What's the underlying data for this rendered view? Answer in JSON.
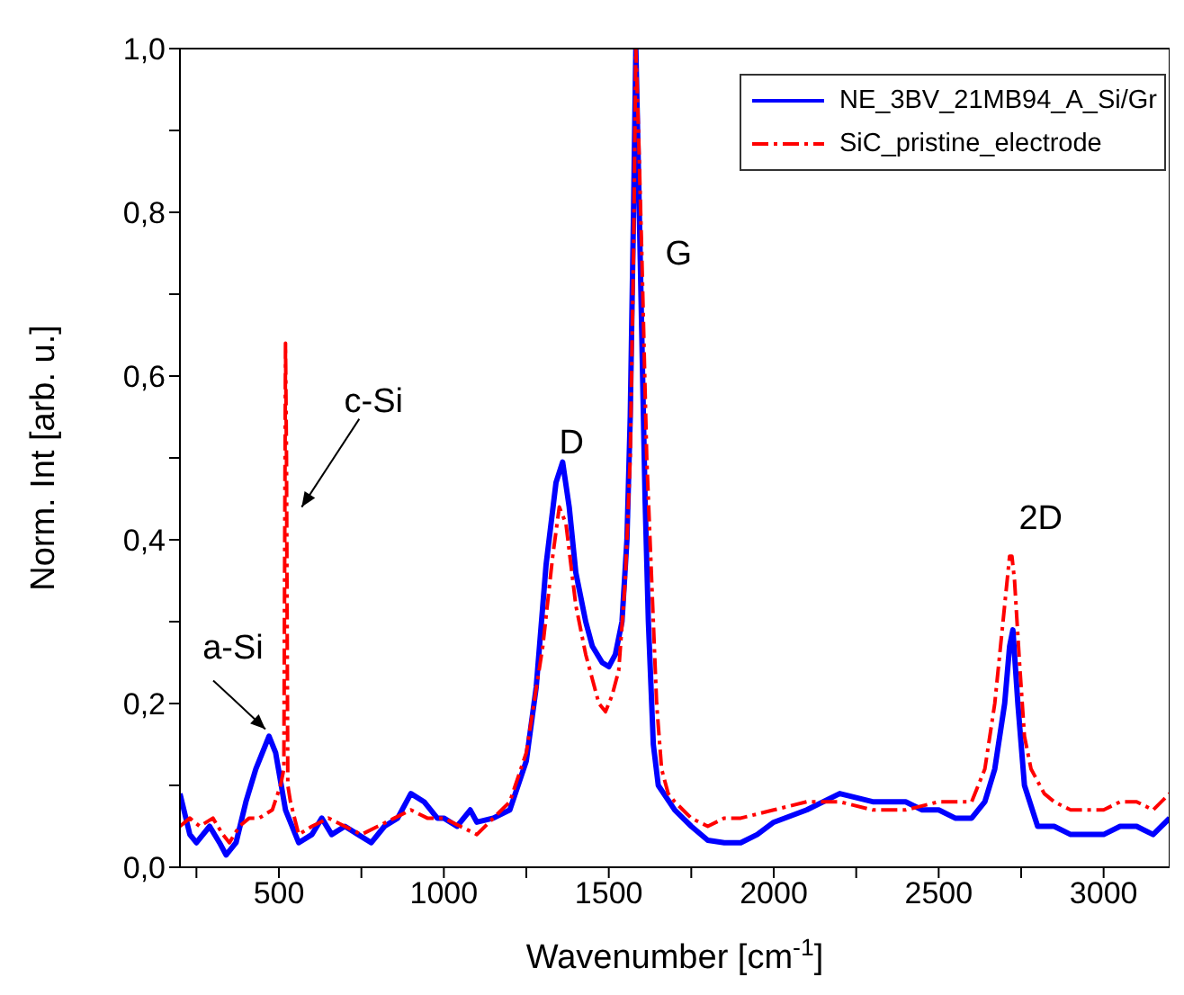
{
  "chart_data": {
    "type": "line",
    "xlabel": "Wavenumber [cm$^{-1}$]",
    "ylabel": "Norm. Int [arb. u.]",
    "xlim": [
      200,
      3200
    ],
    "ylim": [
      0,
      1
    ],
    "xticks": [
      {
        "value": 250,
        "label": null
      },
      500,
      {
        "value": 750,
        "label": null
      },
      1000,
      {
        "value": 1250,
        "label": null
      },
      1500,
      {
        "value": 1750,
        "label": null
      },
      2000,
      {
        "value": 2250,
        "label": null
      },
      2500,
      {
        "value": 2750,
        "label": null
      },
      3000
    ],
    "yticks": [
      {
        "value": 0,
        "label": "0,0"
      },
      {
        "value": 0.1,
        "label": null
      },
      {
        "value": 0.2,
        "label": "0,2"
      },
      {
        "value": 0.3,
        "label": null
      },
      {
        "value": 0.4,
        "label": "0,4"
      },
      {
        "value": 0.5,
        "label": null
      },
      {
        "value": 0.6,
        "label": "0,6"
      },
      {
        "value": 0.7,
        "label": null
      },
      {
        "value": 0.8,
        "label": "0,8"
      },
      {
        "value": 0.9,
        "label": null
      },
      {
        "value": 1,
        "label": "1,0"
      }
    ],
    "grid": false,
    "legend": "top right",
    "marker": "none",
    "annotations": [
      {
        "text": "a-Si",
        "x": 470,
        "y": 0.16
      },
      {
        "text": "c-Si",
        "x": 520,
        "y": 0.64
      },
      {
        "text": "D",
        "x": 1360,
        "y": 0.495
      },
      "G",
      {
        "text": "2D",
        "x": 2722,
        "y": 0.38
      }
    ],
    "series": [
      {
        "name": "NE_3BV_21MB94_A_Si/Gr",
        "color": "#0000ff",
        "line_style": "solid",
        "x": [
          200,
          230,
          250,
          290,
          320,
          340,
          370,
          400,
          430,
          470,
          490,
          520,
          560,
          600,
          630,
          660,
          700,
          740,
          780,
          820,
          860,
          900,
          940,
          980,
          1000,
          1040,
          1080,
          1100,
          1150,
          1200,
          1250,
          1280,
          1310,
          1340,
          1360,
          1380,
          1400,
          1430,
          1450,
          1480,
          1500,
          1520,
          1540,
          1555,
          1565,
          1575,
          1582,
          1590,
          1600,
          1610,
          1620,
          1635,
          1650,
          1700,
          1750,
          1800,
          1850,
          1900,
          1950,
          2000,
          2100,
          2200,
          2300,
          2400,
          2450,
          2500,
          2550,
          2600,
          2640,
          2670,
          2700,
          2715,
          2725,
          2740,
          2760,
          2800,
          2850,
          2900,
          2950,
          3000,
          3050,
          3100,
          3150,
          3200
        ],
        "values": [
          0.09,
          0.04,
          0.03,
          0.05,
          0.03,
          0.015,
          0.03,
          0.08,
          0.12,
          0.16,
          0.14,
          0.07,
          0.03,
          0.04,
          0.06,
          0.04,
          0.05,
          0.04,
          0.03,
          0.05,
          0.06,
          0.09,
          0.08,
          0.06,
          0.06,
          0.05,
          0.07,
          0.055,
          0.06,
          0.07,
          0.13,
          0.22,
          0.37,
          0.47,
          0.495,
          0.44,
          0.36,
          0.3,
          0.27,
          0.25,
          0.245,
          0.26,
          0.3,
          0.4,
          0.55,
          0.8,
          1.0,
          0.85,
          0.65,
          0.45,
          0.3,
          0.15,
          0.1,
          0.07,
          0.05,
          0.033,
          0.03,
          0.03,
          0.04,
          0.055,
          0.07,
          0.09,
          0.08,
          0.08,
          0.07,
          0.07,
          0.06,
          0.06,
          0.08,
          0.12,
          0.2,
          0.27,
          0.29,
          0.2,
          0.1,
          0.05,
          0.05,
          0.04,
          0.04,
          0.04,
          0.05,
          0.05,
          0.04,
          0.06
        ]
      },
      {
        "name": "SiC_pristine_electrode",
        "color": "#ff0000",
        "line_style": "dashed",
        "x": [
          200,
          230,
          260,
          300,
          330,
          350,
          380,
          410,
          440,
          480,
          505,
          515,
          520,
          523,
          527,
          535,
          560,
          600,
          650,
          700,
          750,
          800,
          850,
          900,
          950,
          1000,
          1050,
          1100,
          1150,
          1200,
          1250,
          1300,
          1330,
          1350,
          1370,
          1400,
          1430,
          1450,
          1470,
          1490,
          1510,
          1530,
          1550,
          1565,
          1575,
          1582,
          1590,
          1600,
          1615,
          1630,
          1645,
          1660,
          1680,
          1700,
          1750,
          1800,
          1850,
          1900,
          2000,
          2100,
          2200,
          2300,
          2400,
          2500,
          2600,
          2640,
          2670,
          2700,
          2715,
          2722,
          2730,
          2745,
          2760,
          2780,
          2820,
          2850,
          2900,
          3000,
          3050,
          3100,
          3150,
          3200
        ],
        "values": [
          0.05,
          0.06,
          0.05,
          0.06,
          0.04,
          0.03,
          0.05,
          0.06,
          0.06,
          0.07,
          0.1,
          0.12,
          0.64,
          0.5,
          0.1,
          0.08,
          0.04,
          0.05,
          0.06,
          0.05,
          0.04,
          0.05,
          0.06,
          0.07,
          0.06,
          0.06,
          0.05,
          0.04,
          0.06,
          0.08,
          0.14,
          0.27,
          0.38,
          0.44,
          0.42,
          0.32,
          0.26,
          0.23,
          0.2,
          0.19,
          0.21,
          0.24,
          0.35,
          0.5,
          0.75,
          1.0,
          0.9,
          0.75,
          0.5,
          0.35,
          0.2,
          0.12,
          0.09,
          0.08,
          0.06,
          0.05,
          0.06,
          0.06,
          0.07,
          0.08,
          0.08,
          0.07,
          0.07,
          0.08,
          0.08,
          0.12,
          0.2,
          0.32,
          0.38,
          0.38,
          0.35,
          0.25,
          0.16,
          0.12,
          0.09,
          0.08,
          0.07,
          0.07,
          0.08,
          0.08,
          0.07,
          0.09
        ]
      }
    ]
  }
}
